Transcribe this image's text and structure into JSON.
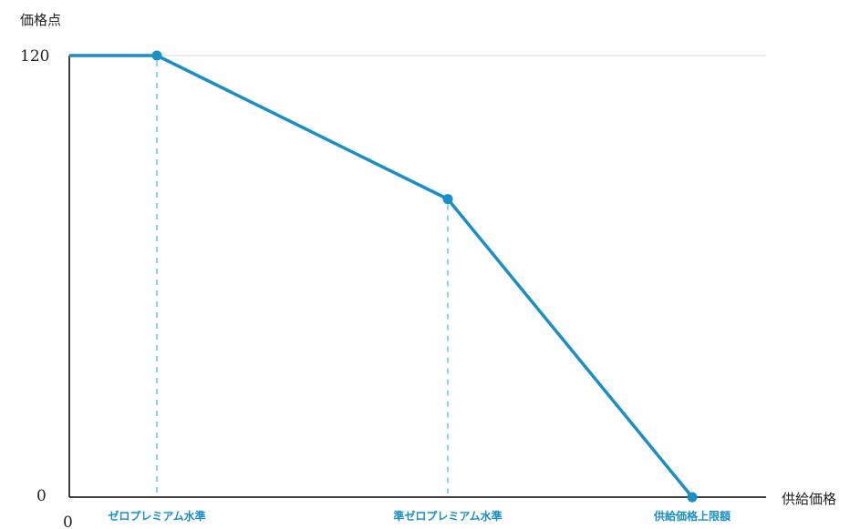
{
  "chart_data": {
    "type": "line",
    "ylabel": "価格点",
    "xlabel": "供給価格",
    "ylim": [
      0,
      120
    ],
    "yticks": [
      "120",
      "0"
    ],
    "xticks": [
      "0"
    ],
    "categories": [
      "ゼロプレミアム水準",
      "準ゼロプレミアム水準",
      "供給価格上限額"
    ],
    "series": [
      {
        "points": [
          {
            "x": "0",
            "y": 120
          },
          {
            "x": "ゼロプレミアム水準",
            "y": 120
          },
          {
            "x": "準ゼロプレミアム水準",
            "y": 81
          },
          {
            "x": "供給価格上限額",
            "y": 0
          }
        ]
      }
    ],
    "reference_lines": "dashed vertical lines at each category",
    "grid": "horizontal line at 120",
    "colors": {
      "line": "#1a8fc6",
      "marker": "#1a8fc6",
      "dashed": "#8fd3f0",
      "gridline": "#d9d9d9",
      "axis": "#000000",
      "category_label": "#1a8fc6"
    }
  }
}
